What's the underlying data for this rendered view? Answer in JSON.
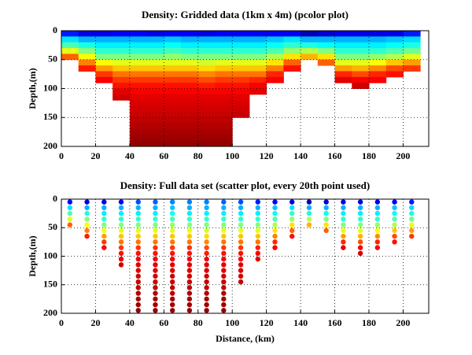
{
  "chart_data": [
    {
      "type": "heatmap",
      "title": "Density: Gridded data (1km x 4m) (pcolor plot)",
      "ylabel": "Depth,(m)",
      "colormap": "jet",
      "clim": [
        0,
        1
      ],
      "grid": true,
      "xlim": [
        0,
        215
      ],
      "xticks": [
        0,
        20,
        40,
        60,
        80,
        100,
        120,
        140,
        160,
        180,
        200
      ],
      "ylim": [
        200,
        0
      ],
      "yticks": [
        0,
        50,
        100,
        150,
        200
      ],
      "x": [
        5,
        15,
        25,
        35,
        45,
        55,
        65,
        75,
        85,
        95,
        105,
        115,
        125,
        135,
        145,
        155,
        165,
        175,
        185,
        195,
        205
      ],
      "y": [
        5,
        15,
        25,
        35,
        45,
        55,
        65,
        75,
        85,
        95,
        105,
        115,
        125,
        135,
        145,
        155,
        165,
        175,
        185,
        195
      ],
      "values": [
        [
          0.15,
          0.35,
          0.45,
          0.6,
          0.78,
          null,
          null,
          null,
          null,
          null,
          null,
          null,
          null,
          null,
          null,
          null,
          null,
          null,
          null,
          null
        ],
        [
          0.1,
          0.3,
          0.4,
          0.5,
          0.62,
          0.75,
          0.85,
          null,
          null,
          null,
          null,
          null,
          null,
          null,
          null,
          null,
          null,
          null,
          null,
          null
        ],
        [
          0.1,
          0.3,
          0.36,
          0.42,
          0.5,
          0.62,
          0.72,
          0.82,
          0.88,
          null,
          null,
          null,
          null,
          null,
          null,
          null,
          null,
          null,
          null,
          null
        ],
        [
          0.12,
          0.3,
          0.36,
          0.42,
          0.5,
          0.6,
          0.68,
          0.76,
          0.82,
          0.86,
          0.9,
          0.92,
          null,
          null,
          null,
          null,
          null,
          null,
          null,
          null
        ],
        [
          0.12,
          0.3,
          0.36,
          0.42,
          0.5,
          0.6,
          0.68,
          0.76,
          0.82,
          0.86,
          0.88,
          0.9,
          0.91,
          0.92,
          0.93,
          0.94,
          0.95,
          0.96,
          0.97,
          0.98
        ],
        [
          0.1,
          0.3,
          0.36,
          0.42,
          0.5,
          0.6,
          0.68,
          0.76,
          0.82,
          0.86,
          0.88,
          0.9,
          0.91,
          0.92,
          0.93,
          0.94,
          0.95,
          0.96,
          0.97,
          0.98
        ],
        [
          0.12,
          0.32,
          0.38,
          0.44,
          0.52,
          0.6,
          0.68,
          0.76,
          0.82,
          0.86,
          0.88,
          0.9,
          0.91,
          0.92,
          0.93,
          0.94,
          0.95,
          0.96,
          0.97,
          0.98
        ],
        [
          0.12,
          0.3,
          0.36,
          0.42,
          0.5,
          0.6,
          0.68,
          0.76,
          0.82,
          0.86,
          0.88,
          0.9,
          0.91,
          0.92,
          0.93,
          0.94,
          0.95,
          0.96,
          0.97,
          0.98
        ],
        [
          0.1,
          0.3,
          0.36,
          0.42,
          0.5,
          0.58,
          0.66,
          0.74,
          0.8,
          0.85,
          0.88,
          0.9,
          0.91,
          0.92,
          0.93,
          0.94,
          0.95,
          0.96,
          0.97,
          0.98
        ],
        [
          0.12,
          0.3,
          0.36,
          0.42,
          0.5,
          0.6,
          0.68,
          0.76,
          0.82,
          0.86,
          0.88,
          0.9,
          0.91,
          0.92,
          0.93,
          0.94,
          0.95,
          0.96,
          0.97,
          0.98
        ],
        [
          0.12,
          0.3,
          0.36,
          0.42,
          0.5,
          0.6,
          0.68,
          0.76,
          0.82,
          0.86,
          0.88,
          0.9,
          0.91,
          0.92,
          0.93,
          null,
          null,
          null,
          null,
          null
        ],
        [
          0.12,
          0.3,
          0.36,
          0.42,
          0.5,
          0.6,
          0.68,
          0.76,
          0.84,
          0.88,
          0.9,
          null,
          null,
          null,
          null,
          null,
          null,
          null,
          null,
          null
        ],
        [
          0.12,
          0.32,
          0.38,
          0.45,
          0.55,
          0.65,
          0.75,
          0.84,
          0.88,
          null,
          null,
          null,
          null,
          null,
          null,
          null,
          null,
          null,
          null,
          null
        ],
        [
          0.12,
          0.35,
          0.42,
          0.52,
          0.65,
          0.78,
          0.86,
          null,
          null,
          null,
          null,
          null,
          null,
          null,
          null,
          null,
          null,
          null,
          null,
          null
        ],
        [
          0.05,
          0.3,
          0.4,
          0.55,
          0.7,
          null,
          null,
          null,
          null,
          null,
          null,
          null,
          null,
          null,
          null,
          null,
          null,
          null,
          null,
          null
        ],
        [
          0.08,
          0.3,
          0.38,
          0.5,
          0.65,
          0.78,
          null,
          null,
          null,
          null,
          null,
          null,
          null,
          null,
          null,
          null,
          null,
          null,
          null,
          null
        ],
        [
          0.1,
          0.3,
          0.36,
          0.42,
          0.5,
          0.6,
          0.72,
          0.84,
          0.9,
          null,
          null,
          null,
          null,
          null,
          null,
          null,
          null,
          null,
          null,
          null
        ],
        [
          0.1,
          0.3,
          0.36,
          0.42,
          0.5,
          0.6,
          0.7,
          0.8,
          0.88,
          0.92,
          null,
          null,
          null,
          null,
          null,
          null,
          null,
          null,
          null,
          null
        ],
        [
          0.1,
          0.3,
          0.36,
          0.42,
          0.52,
          0.62,
          0.74,
          0.84,
          0.88,
          null,
          null,
          null,
          null,
          null,
          null,
          null,
          null,
          null,
          null,
          null
        ],
        [
          0.1,
          0.32,
          0.38,
          0.45,
          0.55,
          0.68,
          0.8,
          0.86,
          null,
          null,
          null,
          null,
          null,
          null,
          null,
          null,
          null,
          null,
          null,
          null
        ],
        [
          0.15,
          0.34,
          0.4,
          0.48,
          0.6,
          0.72,
          0.82,
          null,
          null,
          null,
          null,
          null,
          null,
          null,
          null,
          null,
          null,
          null,
          null,
          null
        ]
      ]
    },
    {
      "type": "scatter",
      "title": "Density: Full data set (scatter plot, every 20th point used)",
      "ylabel": "Depth,(m)",
      "xlabel": "Distance, (km)",
      "colormap": "jet",
      "clim": [
        0,
        1
      ],
      "grid": true,
      "xlim": [
        0,
        215
      ],
      "xticks": [
        0,
        20,
        40,
        60,
        80,
        100,
        120,
        140,
        160,
        180,
        200
      ],
      "ylim": [
        200,
        0
      ],
      "yticks": [
        0,
        50,
        100,
        150,
        200
      ],
      "x": [
        5,
        15,
        25,
        35,
        45,
        55,
        65,
        75,
        85,
        95,
        105,
        115,
        125,
        135,
        145,
        155,
        165,
        175,
        185,
        195,
        205
      ],
      "y": [
        5,
        15,
        25,
        35,
        45,
        55,
        65,
        75,
        85,
        95,
        105,
        115,
        125,
        135,
        145,
        155,
        165,
        175,
        185,
        195
      ],
      "values": [
        [
          0.12,
          0.35,
          0.45,
          0.6,
          0.78,
          null,
          null,
          null,
          null,
          null,
          null,
          null,
          null,
          null,
          null,
          null,
          null,
          null,
          null,
          null
        ],
        [
          0.1,
          0.3,
          0.4,
          0.5,
          0.62,
          0.75,
          0.85,
          null,
          null,
          null,
          null,
          null,
          null,
          null,
          null,
          null,
          null,
          null,
          null,
          null
        ],
        [
          0.1,
          0.3,
          0.36,
          0.42,
          0.5,
          0.62,
          0.72,
          0.82,
          0.88,
          null,
          null,
          null,
          null,
          null,
          null,
          null,
          null,
          null,
          null,
          null
        ],
        [
          0.12,
          0.3,
          0.36,
          0.42,
          0.5,
          0.6,
          0.68,
          0.76,
          0.82,
          0.86,
          0.9,
          0.92,
          null,
          null,
          null,
          null,
          null,
          null,
          null,
          null
        ],
        [
          0.2,
          0.3,
          0.36,
          0.42,
          0.5,
          0.6,
          0.68,
          0.76,
          0.82,
          0.86,
          0.88,
          0.9,
          0.91,
          0.92,
          0.93,
          0.94,
          0.95,
          0.96,
          0.97,
          0.98
        ],
        [
          0.22,
          0.3,
          0.36,
          0.42,
          0.5,
          0.6,
          0.68,
          0.76,
          0.82,
          0.86,
          0.88,
          0.9,
          0.91,
          0.92,
          0.93,
          0.94,
          0.95,
          0.96,
          0.97,
          0.98
        ],
        [
          0.25,
          0.32,
          0.38,
          0.44,
          0.52,
          0.6,
          0.68,
          0.76,
          0.82,
          0.86,
          0.88,
          0.9,
          0.91,
          0.92,
          0.93,
          0.94,
          0.95,
          0.96,
          0.97,
          0.98
        ],
        [
          0.25,
          0.3,
          0.36,
          0.42,
          0.5,
          0.6,
          0.68,
          0.76,
          0.82,
          0.86,
          0.88,
          0.9,
          0.91,
          0.92,
          0.93,
          0.94,
          0.95,
          0.96,
          0.97,
          0.98
        ],
        [
          0.25,
          0.3,
          0.36,
          0.42,
          0.5,
          0.58,
          0.66,
          0.74,
          0.8,
          0.85,
          0.88,
          0.9,
          0.91,
          0.92,
          0.93,
          0.94,
          0.95,
          0.96,
          0.97,
          0.98
        ],
        [
          0.22,
          0.3,
          0.36,
          0.42,
          0.5,
          0.6,
          0.68,
          0.76,
          0.82,
          0.86,
          0.88,
          0.9,
          0.91,
          0.92,
          0.93,
          0.94,
          0.95,
          0.96,
          0.97,
          0.98
        ],
        [
          0.2,
          0.3,
          0.36,
          0.42,
          0.5,
          0.6,
          0.68,
          0.76,
          0.82,
          0.86,
          0.88,
          0.9,
          0.91,
          0.92,
          0.93,
          null,
          null,
          null,
          null,
          null
        ],
        [
          0.15,
          0.3,
          0.36,
          0.42,
          0.5,
          0.6,
          0.68,
          0.76,
          0.84,
          0.88,
          0.9,
          null,
          null,
          null,
          null,
          null,
          null,
          null,
          null,
          null
        ],
        [
          0.12,
          0.32,
          0.38,
          0.45,
          0.55,
          0.65,
          0.75,
          0.84,
          0.88,
          null,
          null,
          null,
          null,
          null,
          null,
          null,
          null,
          null,
          null,
          null
        ],
        [
          0.1,
          0.35,
          0.42,
          0.52,
          0.65,
          0.78,
          0.86,
          null,
          null,
          null,
          null,
          null,
          null,
          null,
          null,
          null,
          null,
          null,
          null,
          null
        ],
        [
          0.05,
          0.3,
          0.4,
          0.55,
          0.7,
          null,
          null,
          null,
          null,
          null,
          null,
          null,
          null,
          null,
          null,
          null,
          null,
          null,
          null,
          null
        ],
        [
          0.08,
          0.3,
          0.38,
          0.5,
          0.65,
          0.78,
          null,
          null,
          null,
          null,
          null,
          null,
          null,
          null,
          null,
          null,
          null,
          null,
          null,
          null
        ],
        [
          0.1,
          0.3,
          0.36,
          0.42,
          0.5,
          0.6,
          0.72,
          0.84,
          0.9,
          null,
          null,
          null,
          null,
          null,
          null,
          null,
          null,
          null,
          null,
          null
        ],
        [
          0.1,
          0.3,
          0.36,
          0.42,
          0.5,
          0.6,
          0.7,
          0.8,
          0.88,
          0.92,
          null,
          null,
          null,
          null,
          null,
          null,
          null,
          null,
          null,
          null
        ],
        [
          0.1,
          0.3,
          0.36,
          0.42,
          0.52,
          0.62,
          0.74,
          0.84,
          0.88,
          null,
          null,
          null,
          null,
          null,
          null,
          null,
          null,
          null,
          null,
          null
        ],
        [
          0.12,
          0.32,
          0.38,
          0.45,
          0.55,
          0.68,
          0.8,
          0.86,
          null,
          null,
          null,
          null,
          null,
          null,
          null,
          null,
          null,
          null,
          null,
          null
        ],
        [
          0.15,
          0.34,
          0.4,
          0.48,
          0.6,
          0.72,
          0.82,
          null,
          null,
          null,
          null,
          null,
          null,
          null,
          null,
          null,
          null,
          null,
          null,
          null
        ]
      ]
    }
  ]
}
